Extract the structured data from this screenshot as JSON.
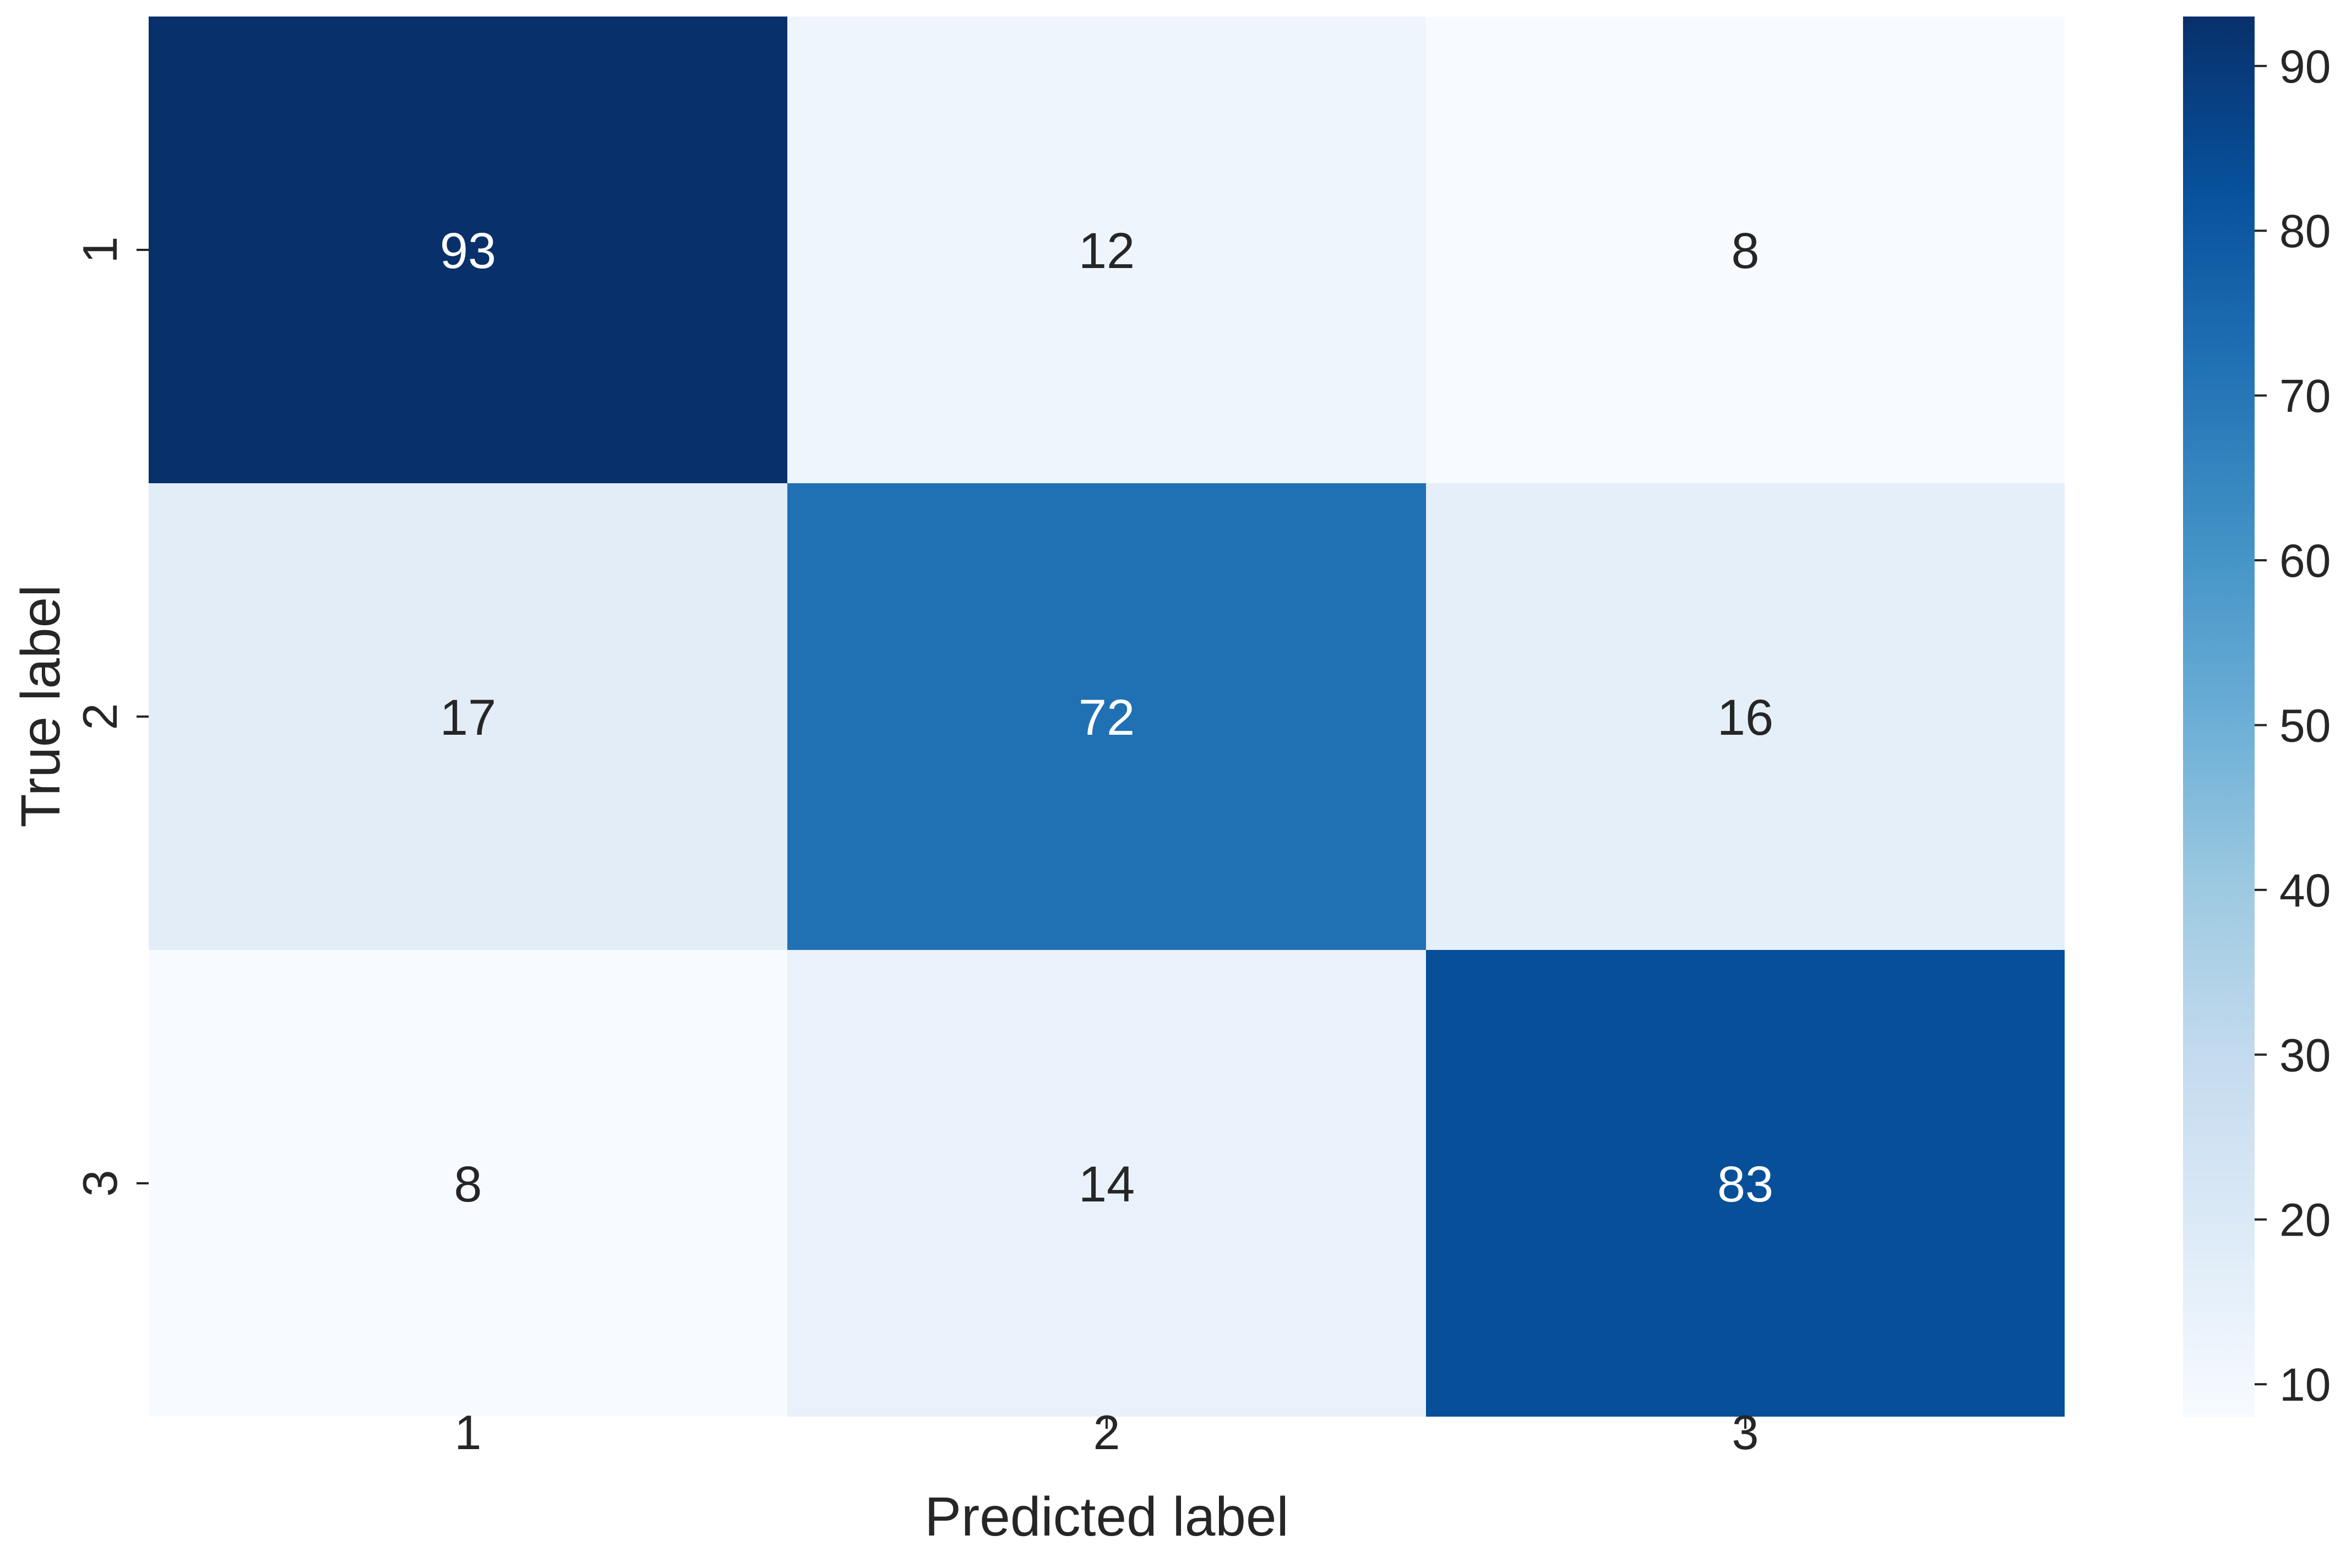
{
  "chart_data": {
    "type": "heatmap",
    "xlabel": "Predicted label",
    "ylabel": "True label",
    "x_categories": [
      "1",
      "2",
      "3"
    ],
    "y_categories": [
      "1",
      "2",
      "3"
    ],
    "values": [
      [
        93,
        12,
        8
      ],
      [
        17,
        72,
        16
      ],
      [
        8,
        14,
        83
      ]
    ],
    "colorbar": {
      "min": 8,
      "max": 93,
      "ticks": [
        10,
        20,
        30,
        40,
        50,
        60,
        70,
        80,
        90
      ]
    },
    "colormap": "Blues",
    "colors": {
      "text_dark": "#262626",
      "text_light": "#ffffff",
      "tick": "#262626"
    }
  }
}
